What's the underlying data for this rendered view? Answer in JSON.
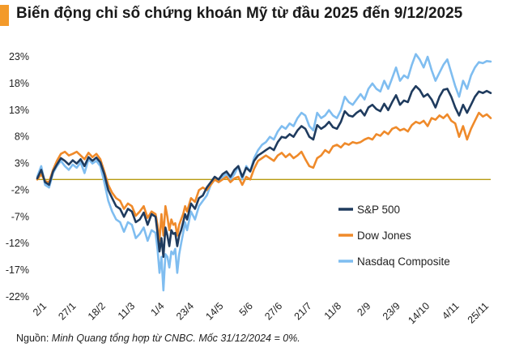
{
  "title": "Biến động chỉ số chứng khoán Mỹ từ đầu 2025 đến 9/12/2025",
  "source": {
    "prefix": "Nguồn: ",
    "text": "Minh Quang tổng hợp từ CNBC. Mốc 31/12/2024 = 0%."
  },
  "colors": {
    "accent": "#f39a2a",
    "sp500": "#1f3b5e",
    "dowjones": "#ef8a2a",
    "nasdaq": "#7fbdf0",
    "baseline": "#b79b12"
  },
  "chart_data": {
    "type": "line",
    "title": "Biến động chỉ số chứng khoán Mỹ từ đầu 2025 đến 9/12/2025",
    "xlabel": "",
    "ylabel": "",
    "ylim": [
      -22,
      23
    ],
    "yticks": [
      23,
      18,
      13,
      8,
      3,
      -2,
      -7,
      -12,
      -17,
      -22
    ],
    "ytick_labels": [
      "23%",
      "18%",
      "13%",
      "8%",
      "3%",
      "-2%",
      "-7%",
      "-12%",
      "-17%",
      "-22%"
    ],
    "xtick_labels": [
      "2/1",
      "27/1",
      "18/2",
      "11/3",
      "1/4",
      "23/4",
      "14/5",
      "5/6",
      "27/6",
      "21/7",
      "11/8",
      "2/9",
      "23/9",
      "14/10",
      "4/11",
      "25/11"
    ],
    "baseline": 0,
    "legend_position": "right",
    "grid": false,
    "x": [
      0,
      2,
      4,
      6,
      8,
      10,
      12,
      14,
      16,
      18,
      20,
      22,
      24,
      26,
      28,
      30,
      32,
      34,
      36,
      38,
      40,
      42,
      44,
      46,
      48,
      50,
      52,
      54,
      56,
      58,
      60,
      61,
      62,
      63,
      64,
      65,
      66,
      67,
      68,
      69,
      70,
      71,
      72,
      73,
      74,
      75,
      76,
      78,
      80,
      82,
      84,
      86,
      88,
      90,
      92,
      94,
      96,
      98,
      100,
      102,
      104,
      106,
      108,
      110,
      112,
      114,
      116,
      118,
      120,
      122,
      124,
      126,
      128,
      130,
      132,
      134,
      136,
      138,
      140,
      142,
      144,
      146,
      148,
      150,
      152,
      154,
      156,
      158,
      160,
      162,
      164,
      166,
      168,
      170,
      172,
      174,
      176,
      178,
      180,
      182,
      184,
      186,
      188,
      190,
      192,
      194,
      196,
      198,
      200,
      202,
      204,
      206,
      208,
      210,
      212,
      214,
      216,
      218,
      220,
      222,
      224,
      226,
      228,
      230
    ],
    "series": [
      {
        "name": "S&P 500",
        "color": "#1f3b5e",
        "values": [
          0.2,
          1.8,
          -0.5,
          -1.0,
          1.5,
          2.8,
          4.0,
          3.5,
          2.8,
          3.6,
          3.0,
          3.8,
          2.5,
          4.2,
          3.5,
          4.1,
          3.2,
          1.0,
          -2.0,
          -3.5,
          -5.0,
          -5.5,
          -7.0,
          -5.5,
          -6.0,
          -8.0,
          -7.5,
          -6.2,
          -8.5,
          -6.5,
          -7.0,
          -10.0,
          -13.5,
          -11.0,
          -14.5,
          -9.0,
          -10.5,
          -12.5,
          -9.5,
          -10.2,
          -10.0,
          -12.5,
          -10.5,
          -9.5,
          -8.0,
          -6.5,
          -7.5,
          -4.5,
          -5.5,
          -3.5,
          -3.0,
          -1.5,
          -0.5,
          0.5,
          0.0,
          1.0,
          1.5,
          0.5,
          1.8,
          2.5,
          0.5,
          2.2,
          1.5,
          3.5,
          4.5,
          5.0,
          5.5,
          6.0,
          5.5,
          7.0,
          8.0,
          7.8,
          8.5,
          8.0,
          9.2,
          10.0,
          9.5,
          8.0,
          7.5,
          10.2,
          9.5,
          10.0,
          10.8,
          9.8,
          9.5,
          10.8,
          12.8,
          12.0,
          11.8,
          12.5,
          13.0,
          12.0,
          13.5,
          14.0,
          13.2,
          12.8,
          14.2,
          13.0,
          14.5,
          15.8,
          14.0,
          14.8,
          14.5,
          16.5,
          17.5,
          16.8,
          15.5,
          16.0,
          15.0,
          13.5,
          15.5,
          16.8,
          17.0,
          15.5,
          13.5,
          12.0,
          14.0,
          12.5,
          14.0,
          15.5,
          16.5,
          16.2,
          16.6,
          16.2
        ]
      },
      {
        "name": "Dow Jones",
        "color": "#ef8a2a",
        "values": [
          0.0,
          1.0,
          -0.3,
          -0.5,
          1.8,
          3.5,
          4.8,
          5.2,
          4.5,
          4.8,
          5.2,
          4.5,
          3.8,
          5.0,
          4.2,
          4.8,
          3.8,
          1.5,
          -1.0,
          -2.5,
          -3.5,
          -4.0,
          -5.5,
          -4.5,
          -5.0,
          -6.8,
          -6.0,
          -5.0,
          -7.2,
          -6.0,
          -6.5,
          -8.5,
          -11.5,
          -6.5,
          -10.5,
          -5.0,
          -7.0,
          -9.5,
          -7.5,
          -8.5,
          -8.2,
          -10.5,
          -8.5,
          -7.5,
          -6.5,
          -5.0,
          -6.0,
          -3.5,
          -4.2,
          -2.0,
          -1.5,
          -2.0,
          -1.0,
          0.0,
          -0.5,
          0.0,
          0.5,
          -0.5,
          0.2,
          0.5,
          -1.0,
          0.5,
          0.0,
          2.0,
          3.5,
          4.0,
          4.5,
          4.0,
          3.5,
          4.5,
          5.0,
          4.2,
          4.8,
          4.0,
          4.5,
          5.2,
          3.8,
          2.5,
          2.2,
          4.0,
          4.5,
          5.5,
          5.0,
          6.2,
          6.5,
          6.0,
          6.8,
          6.5,
          7.0,
          6.8,
          7.0,
          7.5,
          7.8,
          7.5,
          8.5,
          8.2,
          9.0,
          8.5,
          9.5,
          9.8,
          9.2,
          9.5,
          9.0,
          10.2,
          10.8,
          10.5,
          11.0,
          10.0,
          11.5,
          11.2,
          12.0,
          11.5,
          12.2,
          11.0,
          10.5,
          8.0,
          10.0,
          7.5,
          9.5,
          11.0,
          12.5,
          11.8,
          12.2,
          11.5
        ]
      },
      {
        "name": "Nasdaq Composite",
        "color": "#7fbdf0",
        "values": [
          0.5,
          2.5,
          -1.0,
          -1.5,
          1.2,
          2.5,
          3.5,
          2.5,
          1.8,
          2.8,
          2.2,
          3.2,
          1.2,
          3.8,
          3.0,
          3.5,
          2.5,
          -0.5,
          -4.0,
          -6.0,
          -7.5,
          -8.0,
          -9.8,
          -8.0,
          -8.5,
          -11.0,
          -10.2,
          -9.0,
          -11.5,
          -9.5,
          -10.0,
          -13.0,
          -17.5,
          -14.5,
          -20.8,
          -14.0,
          -14.5,
          -16.5,
          -13.5,
          -14.0,
          -13.0,
          -17.5,
          -14.0,
          -12.0,
          -10.0,
          -8.0,
          -9.5,
          -6.0,
          -7.5,
          -5.0,
          -4.0,
          -3.0,
          -1.0,
          0.0,
          -0.5,
          0.5,
          1.0,
          0.0,
          1.0,
          2.5,
          0.0,
          2.5,
          1.5,
          4.0,
          5.5,
          6.5,
          7.0,
          8.0,
          7.5,
          9.0,
          10.0,
          9.5,
          10.5,
          10.0,
          11.5,
          12.5,
          12.0,
          10.0,
          9.2,
          12.5,
          11.5,
          12.0,
          13.0,
          12.0,
          11.5,
          13.0,
          15.5,
          14.5,
          14.0,
          15.0,
          16.0,
          15.0,
          17.0,
          18.0,
          17.0,
          16.5,
          18.5,
          17.0,
          19.0,
          21.0,
          18.5,
          19.5,
          19.0,
          21.5,
          23.5,
          22.5,
          21.0,
          23.0,
          20.5,
          18.5,
          20.0,
          21.5,
          22.5,
          20.0,
          17.5,
          15.5,
          18.5,
          17.0,
          19.5,
          21.0,
          22.0,
          21.8,
          22.2,
          22.1
        ]
      }
    ]
  }
}
